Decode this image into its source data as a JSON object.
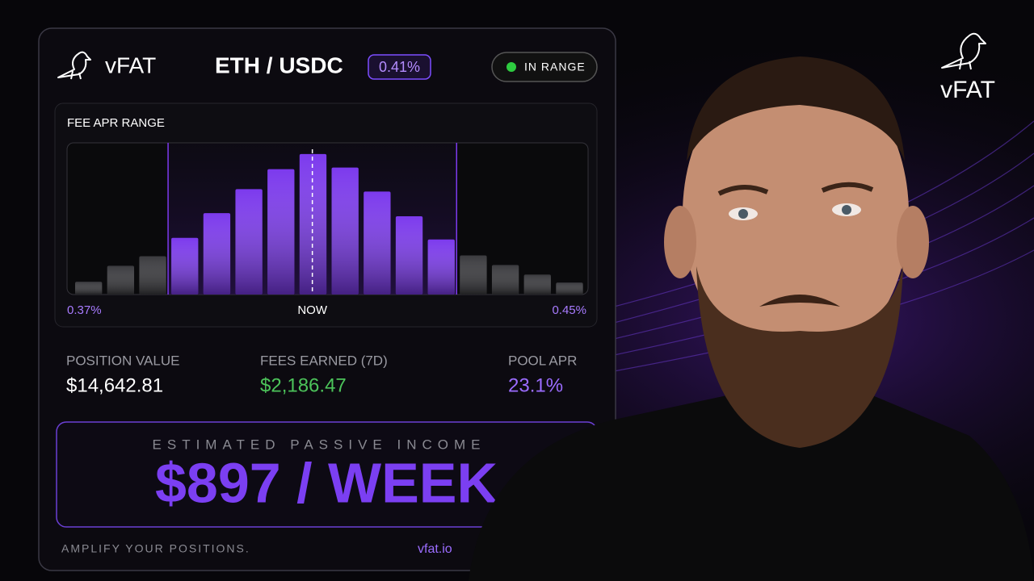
{
  "card": {
    "brand": "vFAT",
    "pair": "ETH / USDC",
    "fee_tier": "0.41%",
    "status": "IN RANGE"
  },
  "fee_chart": {
    "title": "FEE APR RANGE",
    "bars": [
      16,
      36,
      48,
      71,
      102,
      132,
      157,
      176,
      159,
      129,
      98,
      69,
      49,
      37,
      25,
      15
    ],
    "ylim": [
      0,
      190
    ],
    "range_start_index": 3,
    "range_end_index": 11,
    "in_range_color": "#7c3aed",
    "out_range_color": "#3a3a3e",
    "low_label": "0.37%",
    "now_label": "NOW",
    "high_label": "0.45%"
  },
  "stats": [
    {
      "label": "POSITION VALUE",
      "value": "$14,642.81"
    },
    {
      "label": "FEES EARNED (7D)",
      "value": "$2,186.47"
    },
    {
      "label": "POOL APR",
      "value": "23.1%"
    }
  ],
  "income": {
    "label": "ESTIMATED PASSIVE INCOME",
    "value": "$897 / WEEK"
  },
  "footer": {
    "tagline": "AMPLIFY YOUR POSITIONS.",
    "url": "vfat.io"
  },
  "corner_logo": {
    "brand": "vFAT"
  }
}
